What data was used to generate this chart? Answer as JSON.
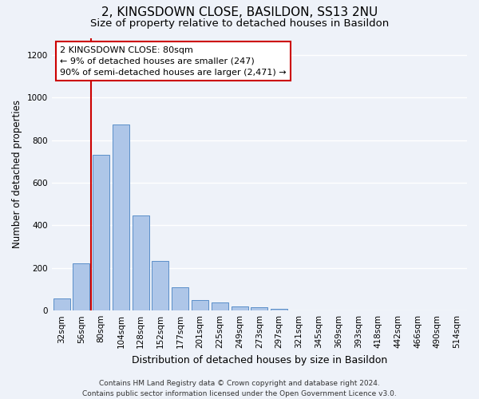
{
  "title": "2, KINGSDOWN CLOSE, BASILDON, SS13 2NU",
  "subtitle": "Size of property relative to detached houses in Basildon",
  "xlabel": "Distribution of detached houses by size in Basildon",
  "ylabel": "Number of detached properties",
  "categories": [
    "32sqm",
    "56sqm",
    "80sqm",
    "104sqm",
    "128sqm",
    "152sqm",
    "177sqm",
    "201sqm",
    "225sqm",
    "249sqm",
    "273sqm",
    "297sqm",
    "321sqm",
    "345sqm",
    "369sqm",
    "393sqm",
    "418sqm",
    "442sqm",
    "466sqm",
    "490sqm",
    "514sqm"
  ],
  "values": [
    55,
    220,
    730,
    875,
    445,
    232,
    108,
    50,
    38,
    20,
    15,
    10,
    0,
    0,
    0,
    0,
    0,
    0,
    0,
    0,
    0
  ],
  "bar_color": "#aec6e8",
  "bar_edge_color": "#5b8fc9",
  "highlight_bar_index": 2,
  "highlight_color": "#cc0000",
  "annotation_text": "2 KINGSDOWN CLOSE: 80sqm\n← 9% of detached houses are smaller (247)\n90% of semi-detached houses are larger (2,471) →",
  "annotation_box_color": "#ffffff",
  "annotation_box_edge_color": "#cc0000",
  "ylim": [
    0,
    1280
  ],
  "yticks": [
    0,
    200,
    400,
    600,
    800,
    1000,
    1200
  ],
  "bg_color": "#eef2f9",
  "grid_color": "#ffffff",
  "footer_text": "Contains HM Land Registry data © Crown copyright and database right 2024.\nContains public sector information licensed under the Open Government Licence v3.0.",
  "title_fontsize": 11,
  "subtitle_fontsize": 9.5,
  "xlabel_fontsize": 9,
  "ylabel_fontsize": 8.5,
  "tick_fontsize": 7.5,
  "annot_fontsize": 8,
  "footer_fontsize": 6.5
}
